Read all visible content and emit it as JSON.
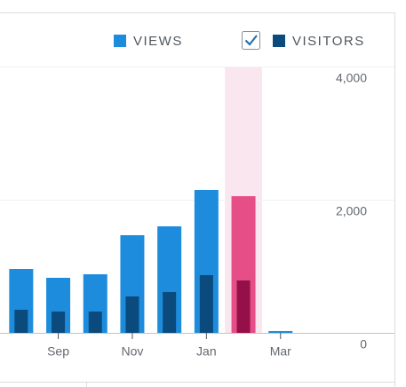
{
  "chart_data": {
    "type": "bar",
    "categories": [
      null,
      "Sep",
      null,
      "Nov",
      null,
      "Jan",
      null,
      "Mar"
    ],
    "series": [
      {
        "name": "VIEWS",
        "color": "#1e8cdc",
        "highlight_color": "#e64e87",
        "values": [
          960,
          827,
          880,
          1467,
          1600,
          2147,
          2053,
          27
        ]
      },
      {
        "name": "VISITORS",
        "color": "#0b4a7c",
        "highlight_color": "#951048",
        "values": [
          347,
          320,
          320,
          547,
          613,
          867,
          787,
          0
        ]
      }
    ],
    "highlighted_index": 6,
    "highlight_band_color": "#f9e6ee",
    "ylim": [
      0,
      4000
    ],
    "yticks": [
      0,
      {
        "value": 2000,
        "label": "2,000"
      },
      {
        "value": 4000,
        "label": "4,000"
      }
    ],
    "grid": true
  }
}
